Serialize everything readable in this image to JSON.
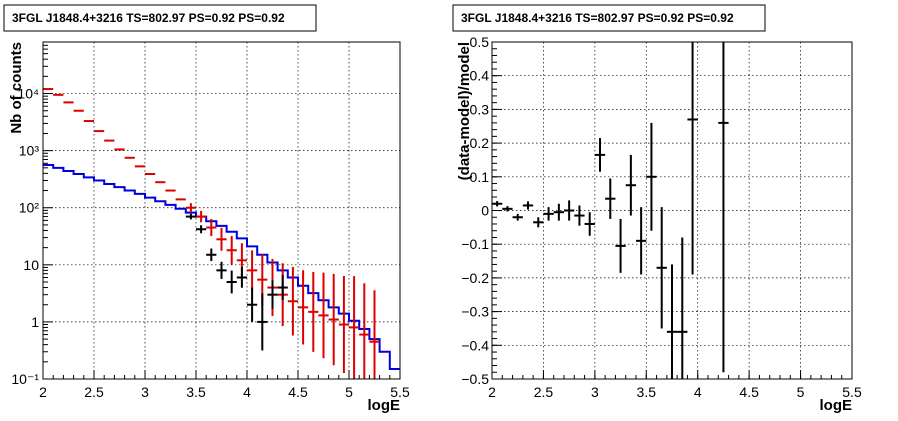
{
  "colors": {
    "data": "#000000",
    "model_sum": "#dd0000",
    "model_source": "#0000dd"
  },
  "chart_data": [
    {
      "type": "line",
      "title": "3FGL J1848.4+3216 TS=802.97 PS=0.92 PS=0.92",
      "xlabel": "logE",
      "ylabel": "Nb of counts",
      "xlim": [
        2,
        5.5
      ],
      "ylim": [
        0.1,
        80000
      ],
      "yscale": "log",
      "grid": true,
      "xticks": [
        "2",
        "2.5",
        "3",
        "3.5",
        "4",
        "4.5",
        "5",
        "5.5"
      ],
      "yticks": [
        {
          "value": 0.1,
          "label": "10⁻¹"
        },
        {
          "value": 1,
          "label": "1"
        },
        {
          "value": 10,
          "label": "10"
        },
        {
          "value": 100,
          "label": "10²"
        },
        {
          "value": 1000,
          "label": "10³"
        },
        {
          "value": 10000,
          "label": "10⁴"
        }
      ],
      "bin_edges": [
        2.0,
        2.1,
        2.2,
        2.3,
        2.4,
        2.5,
        2.6,
        2.7,
        2.8,
        2.9,
        3.0,
        3.1,
        3.2,
        3.3,
        3.4,
        3.5,
        3.6,
        3.7,
        3.8,
        3.9,
        4.0,
        4.1,
        4.2,
        4.3,
        4.4,
        4.5,
        4.6,
        4.7,
        4.8,
        4.9,
        5.0,
        5.1,
        5.2,
        5.3,
        5.4,
        5.5
      ],
      "series": [
        {
          "role": "model_sum",
          "style": "errorbar",
          "x": [
            2.05,
            2.15,
            2.25,
            2.35,
            2.45,
            2.55,
            2.65,
            2.75,
            2.85,
            2.95,
            3.05,
            3.15,
            3.25,
            3.35,
            3.45,
            3.55,
            3.65,
            3.75,
            3.85,
            3.95,
            4.05,
            4.15,
            4.25,
            4.35,
            4.45,
            4.55,
            4.65,
            4.75,
            4.85,
            4.95,
            5.05,
            5.15,
            5.25
          ],
          "y": [
            12000,
            9500,
            7000,
            5000,
            3300,
            2200,
            1500,
            1050,
            750,
            530,
            390,
            280,
            200,
            140,
            100,
            70,
            45,
            28,
            18,
            12,
            8,
            5.5,
            4,
            3,
            2.3,
            1.8,
            1.5,
            1.3,
            1.1,
            0.9,
            0.8,
            0.6,
            0.45
          ],
          "err": [
            0.05,
            0.05,
            0.05,
            0.05,
            0.05,
            0.05,
            0.05,
            0.05,
            0.05,
            0.05,
            0.05,
            0.05,
            0.05,
            0.05,
            0.08,
            0.1,
            0.15,
            0.2,
            0.25,
            0.3,
            0.35,
            0.45,
            0.5,
            0.55,
            0.6,
            0.65,
            0.7,
            0.75,
            0.8,
            0.85,
            0.9,
            0.9,
            0.9
          ]
        },
        {
          "role": "model_source",
          "style": "step",
          "values": [
            560,
            500,
            440,
            390,
            340,
            300,
            260,
            230,
            200,
            175,
            150,
            130,
            112,
            96,
            82,
            70,
            58,
            48,
            38,
            29,
            21,
            15,
            11,
            8,
            6,
            4.3,
            3.2,
            2.4,
            1.8,
            1.4,
            1.05,
            0.75,
            0.5,
            0.3,
            0.15
          ]
        },
        {
          "role": "data",
          "style": "errorbar",
          "x": [
            3.45,
            3.55,
            3.65,
            3.75,
            3.85,
            3.95,
            4.05,
            4.15,
            4.25,
            4.35
          ],
          "y": [
            70,
            42,
            15,
            8,
            5,
            6,
            2,
            1,
            3,
            4
          ],
          "err": [
            0.05,
            0.07,
            0.11,
            0.15,
            0.2,
            0.18,
            0.3,
            0.5,
            0.25,
            0.22
          ]
        }
      ]
    },
    {
      "type": "scatter",
      "title": "3FGL J1848.4+3216 TS=802.97 PS=0.92 PS=0.92",
      "xlabel": "logE",
      "ylabel": "(data-model)/model",
      "xlim": [
        2,
        5.5
      ],
      "ylim": [
        -0.5,
        0.5
      ],
      "grid": true,
      "xticks": [
        "2",
        "2.5",
        "3",
        "3.5",
        "4",
        "4.5",
        "5",
        "5.5"
      ],
      "yticks": [
        "−0.5",
        "−0.4",
        "−0.3",
        "−0.2",
        "−0.1",
        "0",
        "0.1",
        "0.2",
        "0.3",
        "0.4",
        "0.5"
      ],
      "series": [
        {
          "role": "data",
          "style": "errorbar",
          "x": [
            2.05,
            2.15,
            2.25,
            2.35,
            2.45,
            2.55,
            2.65,
            2.75,
            2.85,
            2.95,
            3.05,
            3.15,
            3.25,
            3.35,
            3.45,
            3.55,
            3.65,
            3.75,
            3.85,
            3.95,
            4.25
          ],
          "y": [
            0.02,
            0.005,
            -0.02,
            0.015,
            -0.035,
            -0.01,
            -0.005,
            0.0,
            -0.015,
            -0.04,
            0.165,
            0.035,
            -0.105,
            0.075,
            -0.09,
            0.1,
            -0.17,
            -0.36,
            -0.36,
            0.27,
            0.26
          ],
          "err": [
            0.008,
            0.008,
            0.01,
            0.012,
            0.015,
            0.02,
            0.025,
            0.03,
            0.03,
            0.035,
            0.05,
            0.06,
            0.08,
            0.09,
            0.1,
            0.16,
            0.18,
            0.2,
            0.28,
            0.46,
            0.74
          ]
        }
      ]
    }
  ]
}
